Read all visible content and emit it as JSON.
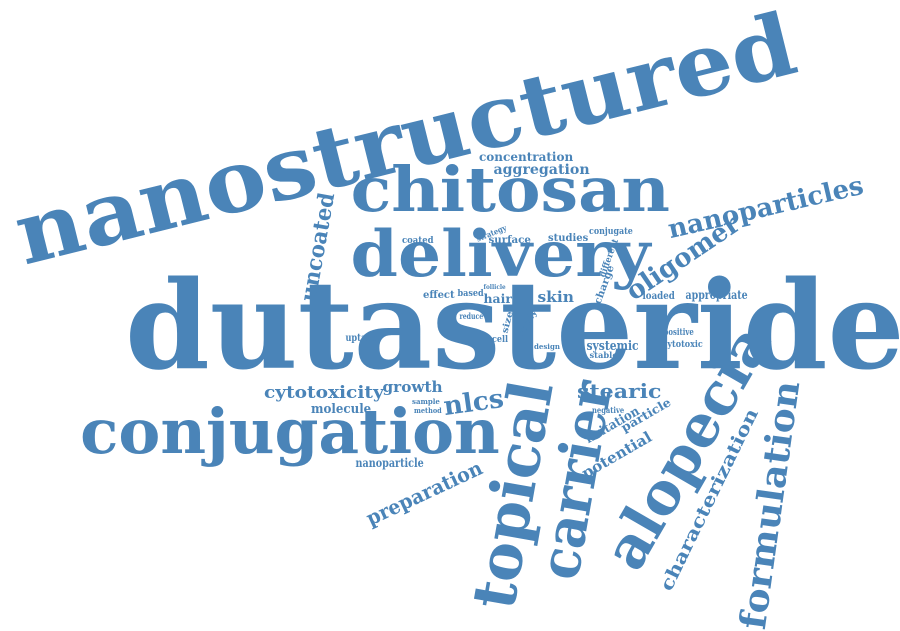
{
  "word_cloud": {
    "color": "#4a84b8",
    "words": [
      {
        "text": "nanostructured"
      },
      {
        "text": "dutasteride"
      },
      {
        "text": "chitosan"
      },
      {
        "text": "delivery"
      },
      {
        "text": "conjugation"
      },
      {
        "text": "topical"
      },
      {
        "text": "carrier"
      },
      {
        "text": "alopecia"
      },
      {
        "text": "formulation"
      },
      {
        "text": "nanoparticles"
      },
      {
        "text": "oligomer"
      },
      {
        "text": "uncoated"
      },
      {
        "text": "concentration"
      },
      {
        "text": "aggregation"
      },
      {
        "text": "characterization"
      },
      {
        "text": "preparation"
      },
      {
        "text": "cytotoxicity"
      },
      {
        "text": "nlcs"
      },
      {
        "text": "stearic"
      },
      {
        "text": "growth"
      },
      {
        "text": "molecule"
      },
      {
        "text": "skin"
      },
      {
        "text": "hair"
      },
      {
        "text": "systemic"
      },
      {
        "text": "potential"
      },
      {
        "text": "irritation"
      },
      {
        "text": "particle"
      },
      {
        "text": "nanoparticle"
      },
      {
        "text": "appropriate"
      },
      {
        "text": "surface"
      },
      {
        "text": "studies"
      },
      {
        "text": "coated"
      },
      {
        "text": "effect"
      },
      {
        "text": "based"
      },
      {
        "text": "conjugate"
      },
      {
        "text": "charge"
      },
      {
        "text": "different"
      },
      {
        "text": "loaded"
      },
      {
        "text": "uptake"
      },
      {
        "text": "positive"
      },
      {
        "text": "cytotoxic"
      },
      {
        "text": "strategy"
      },
      {
        "text": "study"
      },
      {
        "text": "size"
      },
      {
        "text": "cell"
      },
      {
        "text": "design"
      },
      {
        "text": "stable"
      },
      {
        "text": "reduce"
      },
      {
        "text": "follicle"
      },
      {
        "text": "sample"
      },
      {
        "text": "method"
      },
      {
        "text": "negative"
      }
    ]
  }
}
